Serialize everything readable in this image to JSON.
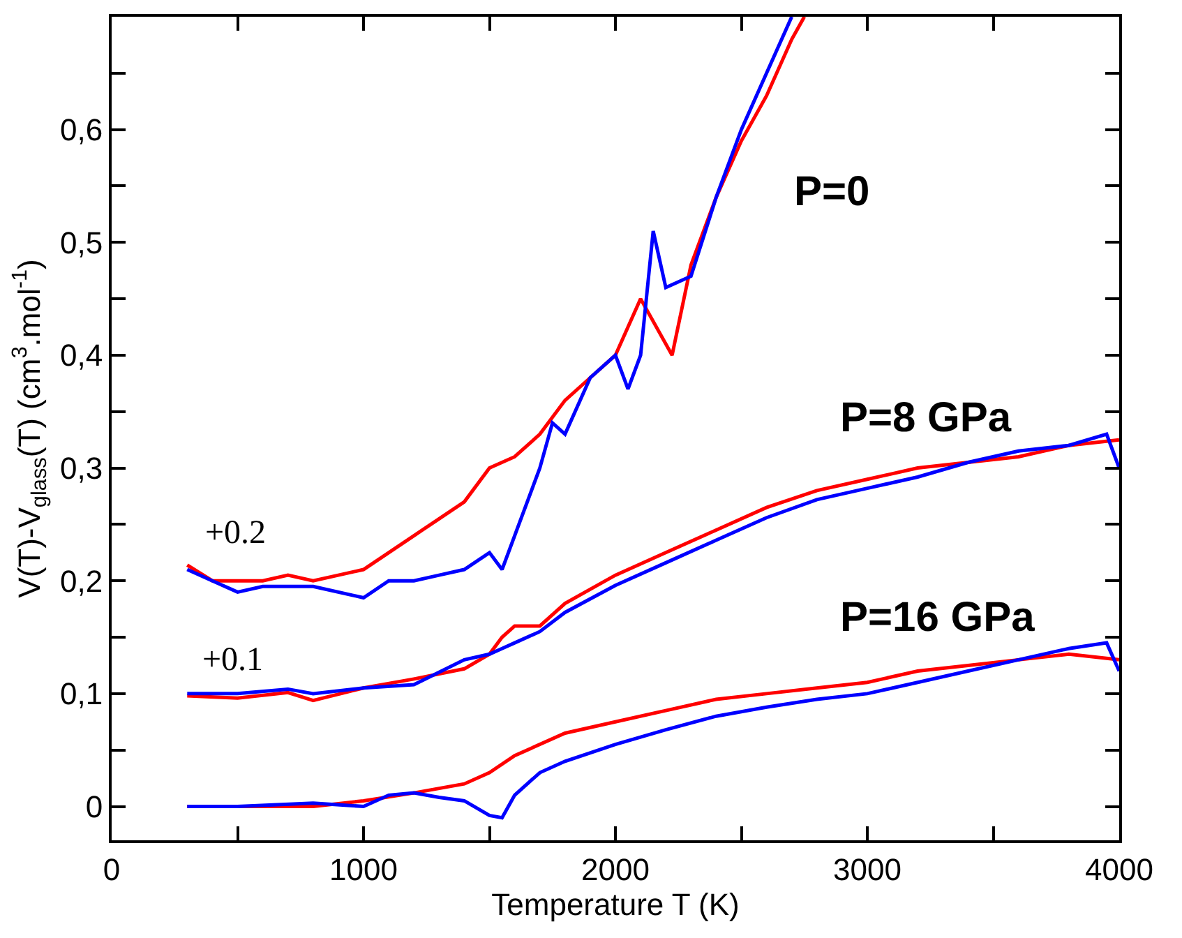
{
  "chart_data": {
    "type": "line",
    "xlabel": "Temperature T (K)",
    "ylabel": "V(T)-V$_{glass}$(T) (cm$^{3}$.mol$^{-1}$)",
    "xlim": [
      0,
      4000
    ],
    "ylim": [
      -0.03,
      0.7
    ],
    "xticks": [
      0,
      {
        "value": 500,
        "label": null
      },
      1000,
      {
        "value": 1500,
        "label": null
      },
      2000,
      {
        "value": 2500,
        "label": null
      },
      3000,
      {
        "value": 3500,
        "label": null
      },
      4000
    ],
    "yticks": [
      0,
      {
        "value": 0.05,
        "label": null
      },
      {
        "value": 0.1,
        "label": "0,1"
      },
      {
        "value": 0.15,
        "label": null
      },
      {
        "value": 0.2,
        "label": "0,2"
      },
      {
        "value": 0.25,
        "label": null
      },
      {
        "value": 0.3,
        "label": "0,3"
      },
      {
        "value": 0.35,
        "label": null
      },
      {
        "value": 0.4,
        "label": "0,4"
      },
      {
        "value": 0.45,
        "label": null
      },
      {
        "value": 0.5,
        "label": "0,5"
      },
      {
        "value": 0.55,
        "label": null
      },
      {
        "value": 0.6,
        "label": "0,6"
      },
      {
        "value": 0.65,
        "label": null
      }
    ],
    "marker": "none",
    "line_style": "solid",
    "series": [
      {
        "color": "#ff0000",
        "x": [
          300,
          400,
          500,
          600,
          700,
          800,
          900,
          1000,
          1100,
          1200,
          1300,
          1400,
          1500,
          1600,
          1700,
          1800,
          1900,
          2000,
          2100,
          2225,
          2300,
          2400,
          2500,
          2600,
          2700,
          2750
        ],
        "values": [
          0.214,
          0.2,
          0.2,
          0.2,
          0.205,
          0.2,
          0.205,
          0.21,
          0.225,
          0.24,
          0.255,
          0.27,
          0.3,
          0.31,
          0.33,
          0.36,
          0.38,
          0.4,
          0.45,
          0.4,
          0.48,
          0.54,
          0.59,
          0.63,
          0.68,
          0.7
        ]
      },
      {
        "color": "#0000ff",
        "x": [
          300,
          400,
          500,
          600,
          800,
          1000,
          1100,
          1200,
          1300,
          1400,
          1500,
          1550,
          1600,
          1650,
          1700,
          1750,
          1800,
          1900,
          2000,
          2050,
          2100,
          2150,
          2200,
          2300,
          2400,
          2500,
          2600,
          2700
        ],
        "values": [
          0.21,
          0.2,
          0.19,
          0.195,
          0.195,
          0.185,
          0.2,
          0.2,
          0.205,
          0.21,
          0.225,
          0.21,
          0.24,
          0.27,
          0.3,
          0.34,
          0.33,
          0.38,
          0.4,
          0.37,
          0.4,
          0.51,
          0.46,
          0.47,
          0.54,
          0.6,
          0.65,
          0.7
        ]
      },
      {
        "color": "#ff0000",
        "x": [
          300,
          500,
          700,
          800,
          1000,
          1200,
          1400,
          1500,
          1550,
          1600,
          1700,
          1800,
          2000,
          2200,
          2400,
          2600,
          2800,
          3000,
          3200,
          3400,
          3600,
          3800,
          4000
        ],
        "values": [
          0.098,
          0.096,
          0.101,
          0.094,
          0.105,
          0.113,
          0.122,
          0.135,
          0.15,
          0.16,
          0.16,
          0.18,
          0.205,
          0.225,
          0.245,
          0.265,
          0.28,
          0.29,
          0.3,
          0.305,
          0.31,
          0.32,
          0.325
        ]
      },
      {
        "color": "#0000ff",
        "x": [
          300,
          500,
          700,
          800,
          1000,
          1200,
          1400,
          1500,
          1550,
          1600,
          1700,
          1800,
          2000,
          2200,
          2400,
          2600,
          2800,
          3000,
          3200,
          3400,
          3600,
          3800,
          3950,
          4000
        ],
        "values": [
          0.1,
          0.1,
          0.104,
          0.1,
          0.105,
          0.108,
          0.13,
          0.135,
          0.14,
          0.145,
          0.155,
          0.172,
          0.196,
          0.216,
          0.236,
          0.256,
          0.272,
          0.282,
          0.292,
          0.305,
          0.315,
          0.32,
          0.33,
          0.3
        ]
      },
      {
        "color": "#ff0000",
        "x": [
          300,
          500,
          800,
          1000,
          1200,
          1400,
          1500,
          1600,
          1800,
          2000,
          2200,
          2400,
          2600,
          2800,
          3000,
          3200,
          3400,
          3600,
          3800,
          4000
        ],
        "values": [
          0,
          0,
          0,
          0.005,
          0.012,
          0.02,
          0.03,
          0.045,
          0.065,
          0.075,
          0.085,
          0.095,
          0.1,
          0.105,
          0.11,
          0.12,
          0.125,
          0.13,
          0.135,
          0.13
        ]
      },
      {
        "color": "#0000ff",
        "x": [
          300,
          500,
          800,
          1000,
          1100,
          1200,
          1300,
          1400,
          1500,
          1550,
          1600,
          1700,
          1800,
          2000,
          2200,
          2400,
          2600,
          2800,
          3000,
          3200,
          3400,
          3600,
          3800,
          3950,
          4000
        ],
        "values": [
          0,
          0,
          0.003,
          0,
          0.01,
          0.012,
          0.008,
          0.005,
          -0.008,
          -0.01,
          0.01,
          0.03,
          0.04,
          0.055,
          0.068,
          0.08,
          0.088,
          0.095,
          0.1,
          0.11,
          0.12,
          0.13,
          0.14,
          0.145,
          0.12
        ]
      }
    ],
    "annotations": [
      "P=0",
      "P=8 GPa",
      "P=16 GPa",
      "+0.2",
      "+0.1"
    ]
  }
}
